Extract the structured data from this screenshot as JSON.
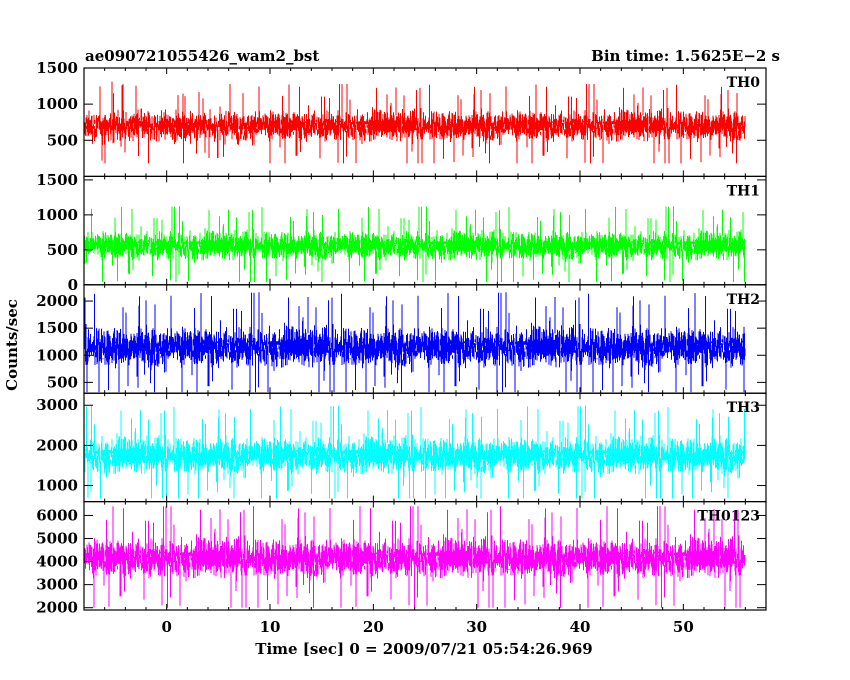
{
  "chart_data": {
    "type": "line",
    "title": "ae090721055426_wam2_bst",
    "subtitle": "Bin time: 1.5625E−2 s",
    "xlabel": "Time [sec] 0 = 2009/07/21 05:54:26.969",
    "ylabel": "Counts/sec",
    "xlim": [
      -8,
      58
    ],
    "x_ticks": [
      0,
      10,
      20,
      30,
      40,
      50
    ],
    "x_tick_labels": [
      "0",
      "10",
      "20",
      "30",
      "40",
      "50"
    ],
    "data_x_range": [
      -8,
      56
    ],
    "series": [
      {
        "name": "TH0",
        "color": "#ff0000",
        "ylim": [
          0,
          1500
        ],
        "y_ticks": [
          500,
          1000,
          1500
        ],
        "y_tick_labels": [
          "500",
          "1000",
          "1500"
        ],
        "mean": 700,
        "spread": 155,
        "low": 180,
        "high": 1500
      },
      {
        "name": "TH1",
        "color": "#00ff00",
        "ylim": [
          0,
          1550
        ],
        "y_ticks": [
          0,
          500,
          1000,
          1500
        ],
        "y_tick_labels": [
          "0",
          "500",
          "1000",
          "1500"
        ],
        "mean": 560,
        "spread": 150,
        "low": 40,
        "high": 1500
      },
      {
        "name": "TH2",
        "color": "#0000ff",
        "ylim": [
          300,
          2300
        ],
        "y_ticks": [
          500,
          1000,
          1500,
          2000
        ],
        "y_tick_labels": [
          "500",
          "1000",
          "1500",
          "2000"
        ],
        "mean": 1150,
        "spread": 270,
        "low": 320,
        "high": 2250
      },
      {
        "name": "TH3",
        "color": "#00ffff",
        "ylim": [
          600,
          3300
        ],
        "y_ticks": [
          1000,
          2000,
          3000
        ],
        "y_tick_labels": [
          "1000",
          "2000",
          "3000"
        ],
        "mean": 1750,
        "spread": 330,
        "low": 680,
        "high": 3200
      },
      {
        "name": "TH0123",
        "color": "#ff00ff",
        "ylim": [
          1900,
          6600
        ],
        "y_ticks": [
          2000,
          3000,
          4000,
          5000,
          6000
        ],
        "y_tick_labels": [
          "2000",
          "3000",
          "4000",
          "5000",
          "6000"
        ],
        "mean": 4150,
        "spread": 620,
        "low": 2000,
        "high": 6400
      }
    ]
  }
}
